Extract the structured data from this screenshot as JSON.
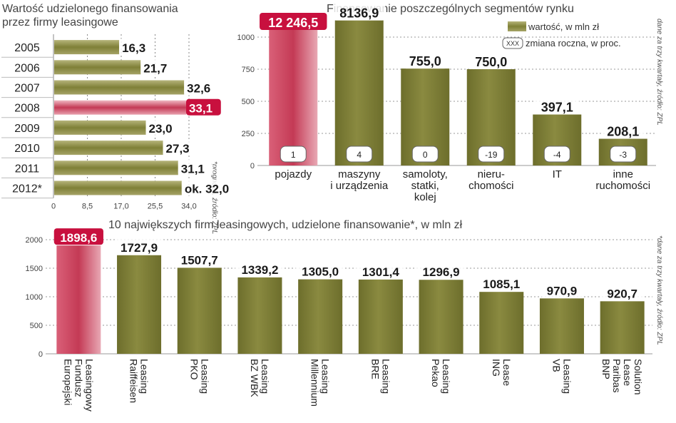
{
  "chart_data": [
    {
      "type": "bar",
      "orientation": "horizontal",
      "title_lines": [
        "Wartość udzielonego finansowania",
        "przez firmy leasingowe"
      ],
      "categories": [
        "2005",
        "2006",
        "2007",
        "2008",
        "2009",
        "2010",
        "2011",
        "2012*"
      ],
      "values": [
        16.3,
        21.7,
        32.6,
        33.1,
        23.0,
        27.3,
        31.1,
        32.0
      ],
      "value_labels": [
        "16,3",
        "21,7",
        "32,6",
        "33,1",
        "23,0",
        "27,3",
        "31,1",
        "ok. 32,0"
      ],
      "highlight_index": 3,
      "xlim": [
        0,
        34
      ],
      "xticks": [
        0,
        8.5,
        17,
        25.5,
        34
      ],
      "xtick_labels": [
        "0",
        "8,5",
        "17,0",
        "25,5",
        "34,0"
      ],
      "note": "*prognoza, źródło: ZPL",
      "grid": true
    },
    {
      "type": "bar",
      "title": "Finansowanie poszczególnych segmentów rynku",
      "categories": [
        [
          "pojazdy"
        ],
        [
          "maszyny",
          "i urządzenia"
        ],
        [
          "samoloty,",
          "statki,",
          "kolej"
        ],
        [
          "nieru-",
          "chomości"
        ],
        [
          "IT"
        ],
        [
          "inne",
          "ruchomości"
        ]
      ],
      "values": [
        12246.5,
        8136.9,
        755.0,
        750.0,
        397.1,
        208.1
      ],
      "value_labels": [
        "12 246,5",
        "8136,9",
        "755,0",
        "750,0",
        "397,1",
        "208,1"
      ],
      "changes": [
        "1",
        "4",
        "0",
        "-19",
        "-4",
        "-3"
      ],
      "highlight_index": 0,
      "ylim": [
        0,
        1000
      ],
      "yticks": [
        0,
        250,
        500,
        750,
        1000
      ],
      "legend": {
        "value_label": "wartość, w mln zł",
        "change_box": "XXX",
        "change_label": "zmiana roczna, w proc.",
        "position": "top-right"
      },
      "note": "dane za trzy kwartały, źródło: ZPL",
      "grid": true
    },
    {
      "type": "bar",
      "title": "10 największych firm leasingowych, udzielone finansowanie*, w mln zł",
      "categories": [
        [
          "Europejski",
          "Fundusz",
          "Leasingowy"
        ],
        [
          "Raiffeisen",
          "Leasing"
        ],
        [
          "PKO",
          "Leasing"
        ],
        [
          "BZ WBK",
          "Leasing"
        ],
        [
          "Millennium",
          "Leasing"
        ],
        [
          "BRE",
          "Leasing"
        ],
        [
          "Pekao",
          "Leasing"
        ],
        [
          "ING",
          "Lease"
        ],
        [
          "VB",
          "Leasing"
        ],
        [
          "BNP",
          "Paribas",
          "Lease",
          "Solution"
        ]
      ],
      "values": [
        1898.6,
        1727.9,
        1507.7,
        1339.2,
        1305.0,
        1301.4,
        1296.9,
        1085.1,
        970.9,
        920.7
      ],
      "value_labels": [
        "1898,6",
        "1727,9",
        "1507,7",
        "1339,2",
        "1305,0",
        "1301,4",
        "1296,9",
        "1085,1",
        "970,9",
        "920,7"
      ],
      "highlight_index": 0,
      "ylim": [
        0,
        2000
      ],
      "yticks": [
        0,
        500,
        1000,
        1500,
        2000
      ],
      "note": "*dane za trzy kwartały, źródło: ZPL",
      "grid": true
    }
  ],
  "colors": {
    "bar_olive": "#7f8037",
    "bar_olive_light": "#a8a663",
    "bar_highlight": "#c2354f",
    "label_highlight_bg": "#c8103e",
    "label_text": "#1a1a1a"
  }
}
